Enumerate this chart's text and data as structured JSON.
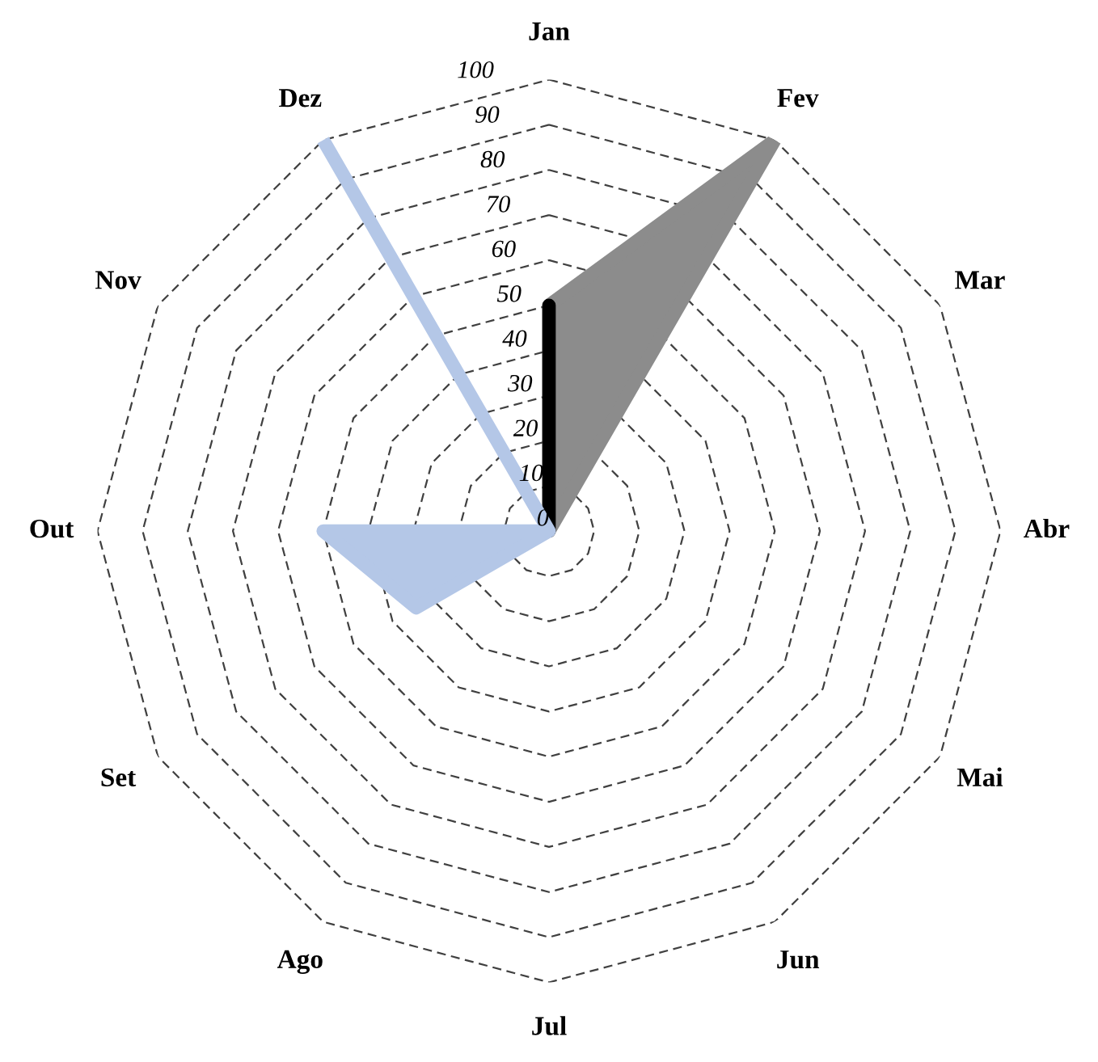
{
  "chart_data": {
    "type": "radar",
    "categories": [
      "Jan",
      "Fev",
      "Mar",
      "Abr",
      "Mai",
      "Jun",
      "Jul",
      "Ago",
      "Set",
      "Out",
      "Nov",
      "Dez"
    ],
    "ylim": [
      0,
      100
    ],
    "yticks": [
      0,
      10,
      20,
      30,
      40,
      50,
      60,
      70,
      80,
      90,
      100
    ],
    "grid": true,
    "legend": false,
    "series": [
      {
        "color": "#8c8c8c",
        "values": [
          50,
          100,
          0,
          0,
          0,
          0,
          0,
          0,
          0,
          0,
          0,
          0
        ]
      },
      {
        "color": "#000000",
        "values": [
          50,
          0,
          0,
          0,
          0,
          0,
          0,
          0,
          0,
          0,
          0,
          0
        ]
      },
      {
        "color": "#b4c7e7",
        "values": [
          0,
          0,
          0,
          0,
          0,
          0,
          0,
          0,
          34,
          50,
          0,
          100
        ]
      }
    ]
  }
}
